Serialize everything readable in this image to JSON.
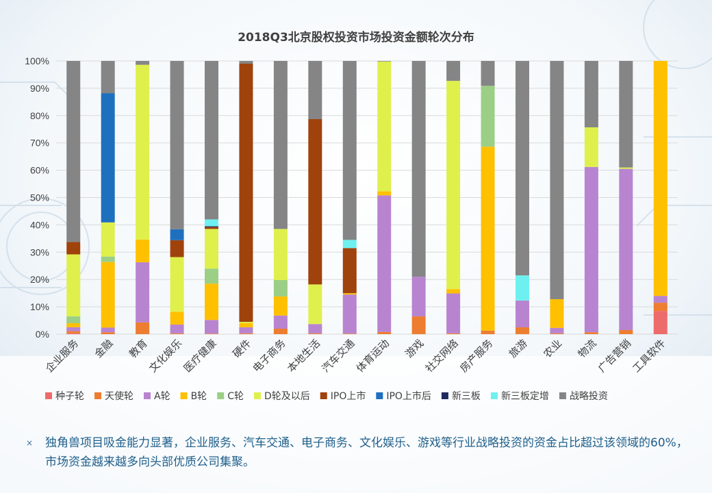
{
  "chart_data": {
    "type": "bar",
    "stacked": true,
    "title": "2018Q3北京股权投资市场投资金额轮次分布",
    "ylim": [
      0,
      100
    ],
    "yticks": [
      "0%",
      "10%",
      "20%",
      "30%",
      "40%",
      "50%",
      "60%",
      "70%",
      "80%",
      "90%",
      "100%"
    ],
    "categories": [
      "企业服务",
      "金融",
      "教育",
      "文化娱乐",
      "医疗健康",
      "硬件",
      "电子商务",
      "本地生活",
      "汽车交通",
      "体育运动",
      "游戏",
      "社交网络",
      "房产服务",
      "旅游",
      "农业",
      "物流",
      "广告营销",
      "工具软件"
    ],
    "series": [
      {
        "name": "种子轮",
        "color": "#ee6b6b",
        "values": [
          0.3,
          0,
          0,
          0,
          0,
          0,
          0,
          0,
          0,
          0,
          0,
          0,
          0,
          0,
          0,
          0,
          0,
          8.5
        ]
      },
      {
        "name": "天使轮",
        "color": "#ed7d31",
        "values": [
          0.8,
          0.7,
          4.3,
          0.3,
          0.2,
          0.3,
          2.0,
          0.3,
          0.2,
          0.8,
          6.5,
          0.3,
          1.3,
          2.5,
          0.3,
          0.7,
          1.5,
          3.0
        ]
      },
      {
        "name": "A轮",
        "color": "#b884d0",
        "values": [
          1.4,
          1.7,
          22,
          3.2,
          5.0,
          2.2,
          4.8,
          3.4,
          14.3,
          50.0,
          14.5,
          14.6,
          0,
          9.8,
          2.0,
          60.5,
          59.0,
          2.5
        ]
      },
      {
        "name": "B轮",
        "color": "#ffc000",
        "values": [
          1.5,
          24.0,
          8.3,
          4.7,
          13.3,
          1.5,
          7.0,
          0,
          0.5,
          1.5,
          0,
          1.6,
          67.3,
          0,
          10.5,
          0,
          0,
          86.0
        ]
      },
      {
        "name": "C轮",
        "color": "#9bcf85",
        "values": [
          2.5,
          2.0,
          0,
          0,
          5.5,
          0,
          6.0,
          0,
          0,
          0,
          0,
          0,
          22.3,
          0,
          0,
          0,
          0,
          0
        ]
      },
      {
        "name": "D轮及以后",
        "color": "#dff04d",
        "values": [
          22.7,
          12.5,
          64,
          20,
          14.5,
          0.5,
          18.7,
          14.5,
          0,
          47.5,
          0,
          76.2,
          0,
          0,
          0,
          14.5,
          0.5,
          0
        ]
      },
      {
        "name": "IPO上市",
        "color": "#a0420c",
        "values": [
          4.5,
          0,
          0,
          6.2,
          0.7,
          94.5,
          0,
          60.5,
          16.5,
          0,
          0,
          0,
          0,
          0,
          0,
          0,
          0,
          0
        ]
      },
      {
        "name": "IPO上市后",
        "color": "#1f6fbf",
        "values": [
          0,
          47.3,
          0,
          4.0,
          0,
          0,
          0,
          0,
          0,
          0,
          0,
          0,
          0,
          0,
          0,
          0,
          0,
          0
        ]
      },
      {
        "name": "新三板",
        "color": "#1f2a5c",
        "values": [
          0,
          0,
          0,
          0,
          0.3,
          0,
          0,
          0,
          0,
          0,
          0,
          0,
          0,
          0,
          0,
          0,
          0,
          0
        ]
      },
      {
        "name": "新三板定增",
        "color": "#6ff0f0",
        "values": [
          0,
          0,
          0,
          0,
          2.5,
          0,
          0,
          0,
          3.0,
          0,
          0,
          0,
          0,
          9.2,
          0,
          0,
          0,
          0
        ]
      },
      {
        "name": "战略投资",
        "color": "#858585",
        "values": [
          66.3,
          11.8,
          1.4,
          61.6,
          58.0,
          1.0,
          61.5,
          21.3,
          65.5,
          0.2,
          79.0,
          7.3,
          9.1,
          78.5,
          87.2,
          24.3,
          39.0,
          0
        ]
      }
    ]
  },
  "note": {
    "bullet": "×",
    "text": "独角兽项目吸金能力显著，企业服务、汽车交通、电子商务、文化娱乐、游戏等行业战略投资的资金占比超过该领域的60%，市场资金越来越多向头部优质公司集聚。"
  }
}
